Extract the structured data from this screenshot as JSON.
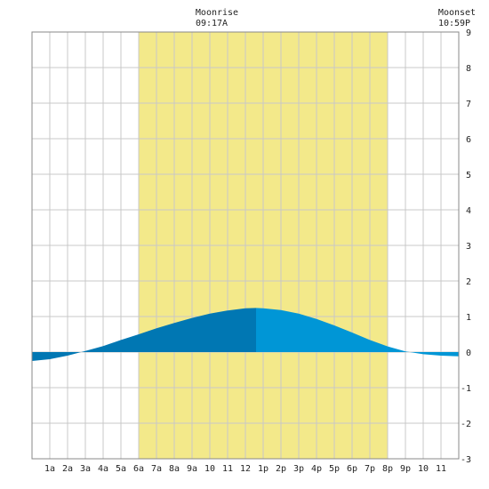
{
  "chart_data": {
    "type": "area",
    "annotations": {
      "moonrise": {
        "label": "Moonrise",
        "time": "09:17A"
      },
      "moonset": {
        "label": "Moonset",
        "time": "10:59P"
      }
    },
    "x_tick_labels": [
      "1a",
      "2a",
      "3a",
      "4a",
      "5a",
      "6a",
      "7a",
      "8a",
      "9a",
      "10",
      "11",
      "12",
      "1p",
      "2p",
      "3p",
      "4p",
      "5p",
      "6p",
      "7p",
      "8p",
      "9p",
      "10",
      "11"
    ],
    "y_tick_labels": [
      "9",
      "8",
      "7",
      "6",
      "5",
      "4",
      "3",
      "2",
      "1",
      "0",
      "-1",
      "-2",
      "-3"
    ],
    "xlim": [
      0,
      24
    ],
    "ylim": [
      -3,
      9
    ],
    "daylight": {
      "start_hour": 6.0,
      "end_hour": 20.0
    },
    "split_hour": 12.6,
    "series": [
      {
        "x": [
          0,
          1,
          2,
          3,
          4,
          5,
          6,
          7,
          8,
          9,
          10,
          11,
          12,
          12.6,
          13,
          14,
          15,
          16,
          17,
          18,
          19,
          20,
          21,
          22,
          23,
          24
        ],
        "y": [
          -0.25,
          -0.2,
          -0.1,
          0.03,
          0.17,
          0.34,
          0.5,
          0.67,
          0.82,
          0.96,
          1.08,
          1.17,
          1.23,
          1.24,
          1.23,
          1.18,
          1.08,
          0.93,
          0.75,
          0.55,
          0.34,
          0.16,
          0.02,
          -0.06,
          -0.1,
          -0.12
        ]
      }
    ],
    "colors": {
      "daylight": "#f3e98a",
      "tide_before": "#0077b3",
      "tide_after": "#0096d6",
      "grid": "#c8c8c8",
      "background": "#ffffff"
    }
  }
}
